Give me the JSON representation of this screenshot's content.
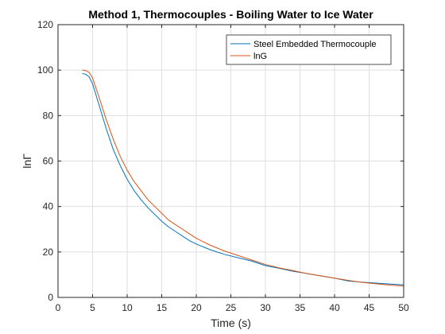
{
  "chart_data": {
    "type": "line",
    "title": "Method 1, Thermocouples - Boiling Water to Ice Water",
    "xlabel": "Time (s)",
    "ylabel": "lnΓ",
    "xlim": [
      0,
      50
    ],
    "ylim": [
      0,
      120
    ],
    "xticks": [
      "0",
      "5",
      "10",
      "15",
      "20",
      "25",
      "30",
      "35",
      "40",
      "45",
      "50"
    ],
    "yticks": [
      "0",
      "20",
      "40",
      "60",
      "80",
      "100",
      "120"
    ],
    "grid": true,
    "legend_location": "top-right",
    "series": [
      {
        "name": "Steel Embedded Thermocouple",
        "color": "#0072BD",
        "x": [
          3.5,
          4.0,
          4.5,
          5.0,
          5.5,
          6.0,
          7.0,
          8.0,
          9.0,
          10.0,
          11.0,
          12.0,
          13.0,
          14.0,
          15.0,
          16.0,
          17.0,
          18.0,
          19.0,
          20.0,
          22.0,
          24.0,
          26.0,
          28.0,
          30.0,
          32.0,
          34.0,
          36.0,
          38.0,
          40.0,
          42.0,
          44.0,
          46.0,
          48.0,
          50.0
        ],
        "y": [
          98.5,
          98.2,
          97.0,
          94.0,
          89.0,
          84.0,
          74.0,
          65.0,
          58.0,
          52.0,
          47.0,
          43.0,
          39.5,
          36.5,
          33.5,
          31.0,
          29.0,
          27.0,
          25.0,
          23.5,
          21.0,
          19.0,
          17.5,
          16.0,
          14.0,
          12.8,
          11.5,
          10.5,
          9.5,
          8.5,
          7.2,
          6.7,
          6.3,
          5.9,
          5.5
        ]
      },
      {
        "name": "lnG",
        "color": "#D95319",
        "x": [
          3.5,
          4.0,
          4.5,
          5.0,
          5.5,
          6.0,
          7.0,
          8.0,
          9.0,
          10.0,
          11.0,
          12.0,
          13.0,
          14.0,
          15.0,
          16.0,
          17.0,
          18.0,
          19.0,
          20.0,
          22.0,
          24.0,
          26.0,
          28.0,
          30.0,
          32.0,
          34.0,
          36.0,
          38.0,
          40.0,
          42.0,
          44.0,
          46.0,
          48.0,
          50.0
        ],
        "y": [
          100.0,
          99.8,
          99.0,
          96.5,
          92.0,
          87.5,
          78.0,
          69.5,
          62.0,
          56.0,
          51.0,
          47.0,
          43.0,
          40.0,
          37.0,
          34.0,
          32.0,
          30.0,
          28.0,
          26.0,
          23.0,
          20.5,
          18.5,
          16.5,
          14.5,
          13.0,
          11.8,
          10.5,
          9.5,
          8.5,
          7.5,
          6.6,
          6.0,
          5.4,
          5.0
        ]
      }
    ]
  }
}
